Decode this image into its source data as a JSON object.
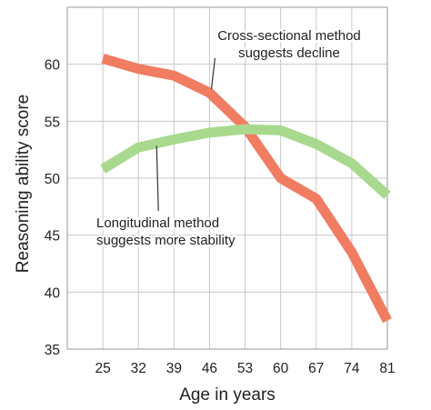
{
  "chart_data": {
    "type": "line",
    "xlabel": "Age in years",
    "ylabel": "Reasoning ability score",
    "x": [
      25,
      32,
      39,
      46,
      53,
      60,
      67,
      74,
      81
    ],
    "xlim": [
      18,
      81
    ],
    "ylim": [
      35,
      65
    ],
    "yticks": [
      35,
      40,
      45,
      50,
      55,
      60
    ],
    "grid": true,
    "series": [
      {
        "color": "#f07c62",
        "values": [
          60.5,
          59.6,
          59.0,
          57.5,
          54.5,
          50.0,
          48.2,
          43.5,
          37.5
        ]
      },
      {
        "color": "#a8d98e",
        "values": [
          50.8,
          52.7,
          53.4,
          54.0,
          54.3,
          54.2,
          53.0,
          51.3,
          48.5
        ]
      }
    ],
    "annotations": [
      {
        "lines": [
          "Cross-sectional method",
          "suggests decline"
        ],
        "points_to_x": 46,
        "points_to_y": 57.5
      },
      {
        "lines": [
          "Longitudinal method",
          "suggests more stability"
        ],
        "points_to_x": 32,
        "points_to_y": 53.0
      }
    ]
  }
}
